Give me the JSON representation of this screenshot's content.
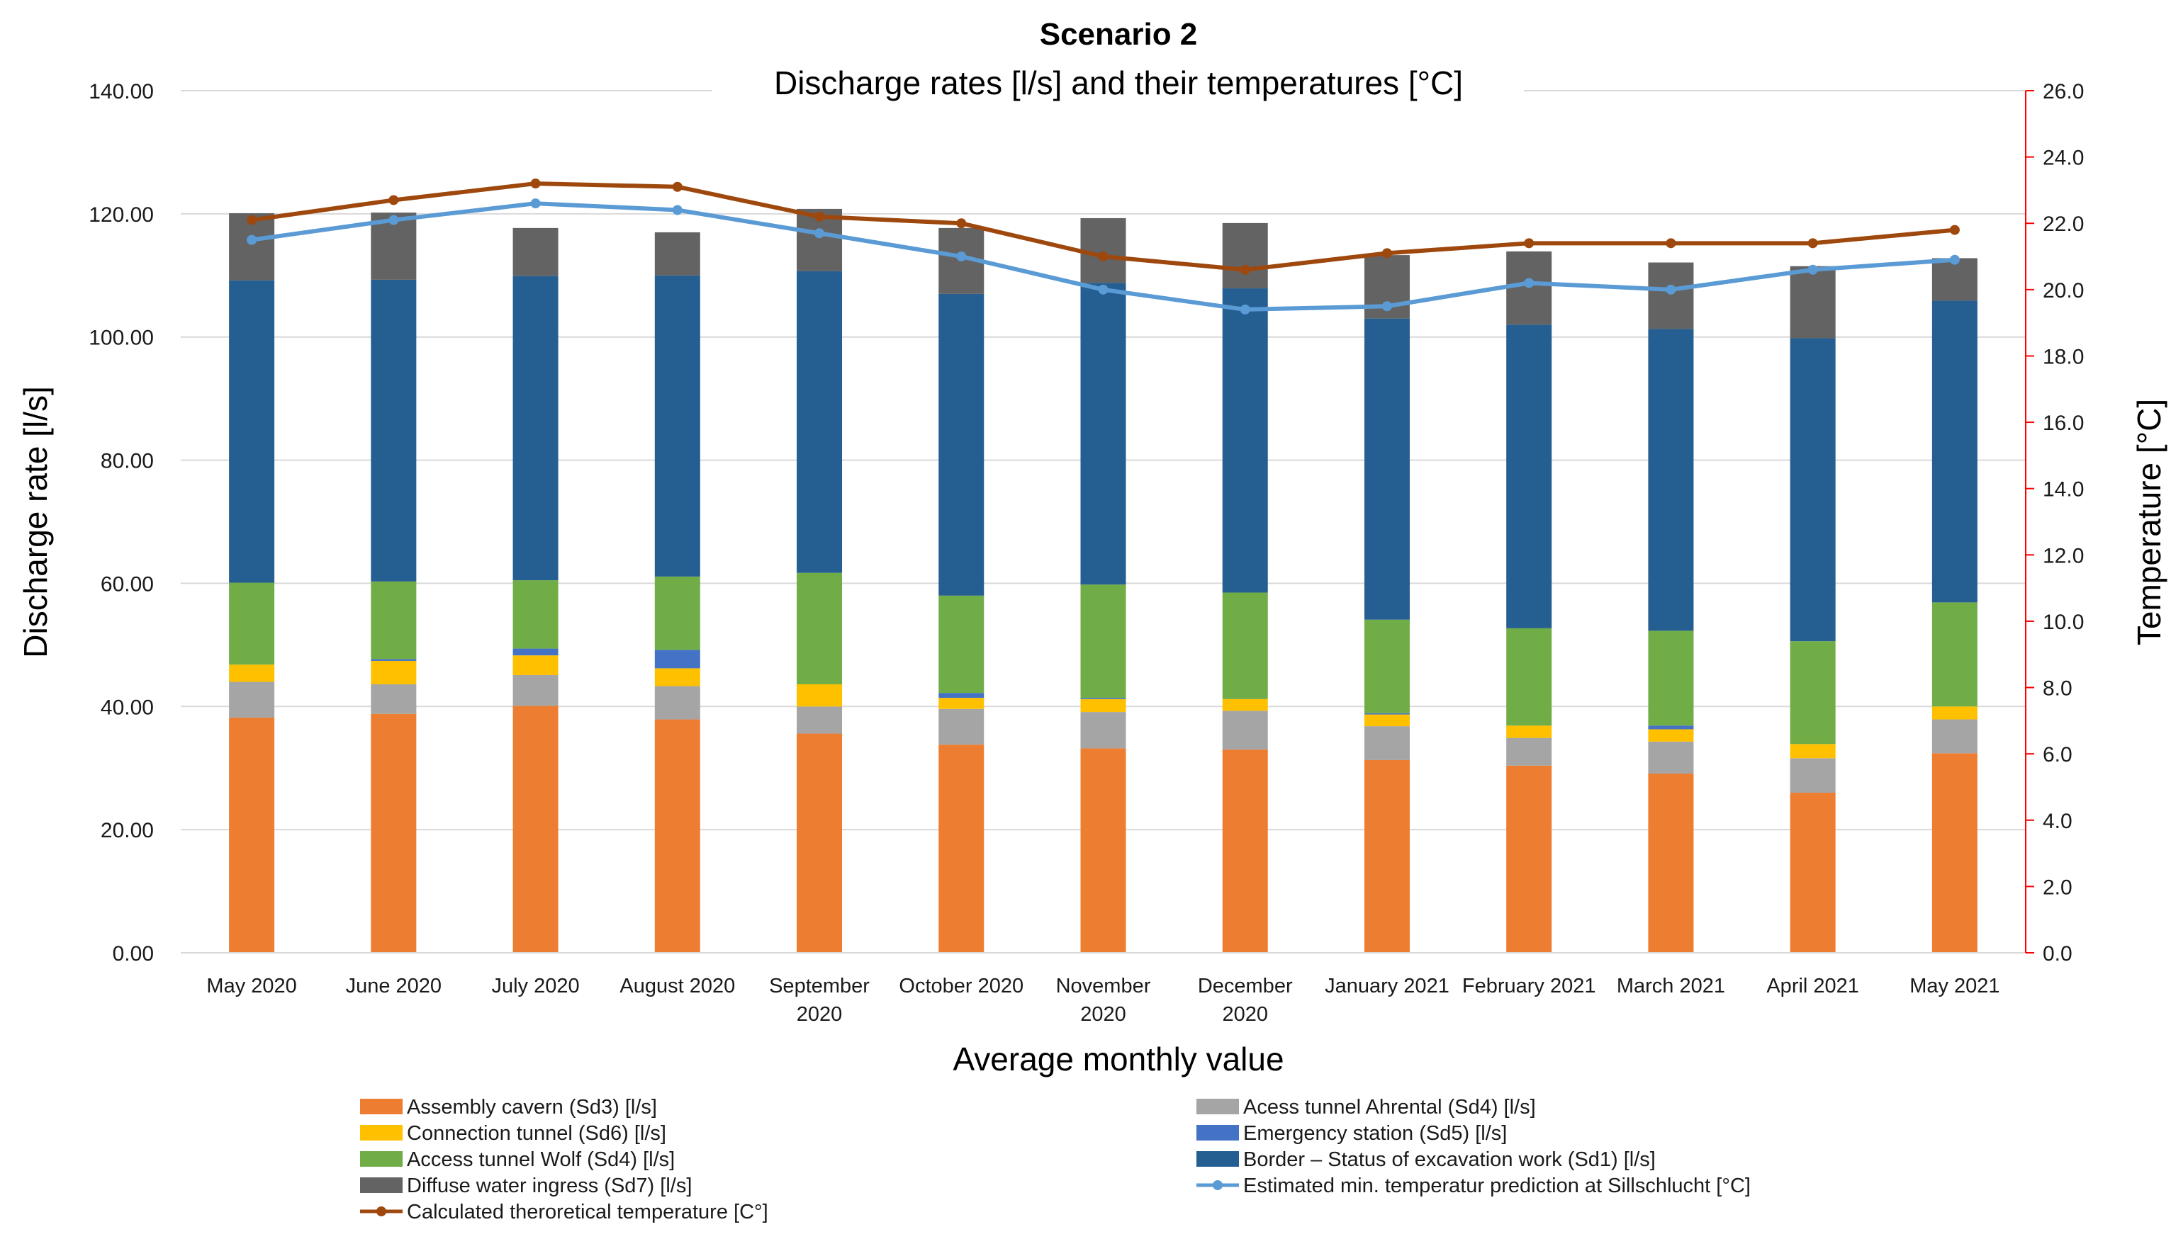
{
  "chart_data": {
    "type": "bar",
    "stacked": true,
    "title": "Scenario 2",
    "subtitle": "Discharge rates [l/s] and their temperatures [°C]",
    "xlabel": "Average  monthly value",
    "ylabel": "Discharge rate [l/s]",
    "y2label": "Temperature [°C]",
    "ylim": [
      0,
      140
    ],
    "y2lim": [
      0,
      26
    ],
    "yticks": [
      "0.00",
      "20.00",
      "40.00",
      "60.00",
      "80.00",
      "100.00",
      "120.00",
      "140.00"
    ],
    "y2ticks": [
      "0.0",
      "2.0",
      "4.0",
      "6.0",
      "8.0",
      "10.0",
      "12.0",
      "14.0",
      "16.0",
      "18.0",
      "20.0",
      "22.0",
      "24.0",
      "26.0"
    ],
    "categories": [
      "May 2020",
      "June 2020",
      "July 2020",
      "August 2020",
      "September 2020",
      "October 2020",
      "November 2020",
      "December 2020",
      "January 2021",
      "February 2021",
      "March 2021",
      "April 2021",
      "May 2021"
    ],
    "series": [
      {
        "name": "Assembly cavern (Sd3) [l/s]",
        "color": "#ED7D31",
        "values": [
          38.2,
          38.8,
          40.1,
          37.9,
          35.6,
          33.8,
          33.2,
          33.0,
          31.3,
          30.4,
          29.1,
          26.0,
          32.4
        ]
      },
      {
        "name": "Acess tunnel Ahrental (Sd4) [l/s]",
        "color": "#A5A5A5",
        "values": [
          5.8,
          4.8,
          5.0,
          5.4,
          4.4,
          5.8,
          5.9,
          6.3,
          5.5,
          4.5,
          5.2,
          5.6,
          5.5
        ]
      },
      {
        "name": "Connection tunnel (Sd6) [l/s]",
        "color": "#FFC000",
        "values": [
          2.8,
          3.8,
          3.2,
          2.9,
          3.6,
          1.8,
          2.1,
          1.9,
          1.9,
          2.0,
          2.0,
          2.3,
          2.1
        ]
      },
      {
        "name": "Emergency station (Sd5) [l/s]",
        "color": "#4472C4",
        "values": [
          0.0,
          0.3,
          1.1,
          3.0,
          0.0,
          0.8,
          0.2,
          0.0,
          0.2,
          0.0,
          0.6,
          0.0,
          0.0
        ]
      },
      {
        "name": "Access tunnel Wolf (Sd4) [l/s]",
        "color": "#70AD47",
        "values": [
          13.3,
          12.6,
          11.1,
          11.9,
          18.1,
          15.8,
          18.4,
          17.3,
          15.2,
          15.8,
          15.4,
          16.7,
          16.9
        ]
      },
      {
        "name": "Border – Status of excavation work (Sd1) [l/s]",
        "color": "#255E91",
        "values": [
          49.1,
          49.0,
          49.4,
          48.9,
          49.0,
          49.0,
          49.0,
          49.4,
          48.9,
          49.3,
          49.0,
          49.2,
          49.0
        ]
      },
      {
        "name": "Diffuse water ingress (Sd7) [l/s]",
        "color": "#636363",
        "values": [
          10.9,
          10.9,
          7.8,
          7.0,
          10.1,
          10.7,
          10.5,
          10.6,
          10.3,
          11.9,
          10.8,
          11.7,
          6.9
        ]
      }
    ],
    "lines": [
      {
        "name": "Estimated min. temperatur prediction at Sillschlucht [°C]",
        "color": "#5B9BD5",
        "axis": "y2",
        "values": [
          21.5,
          22.1,
          22.6,
          22.4,
          21.7,
          21.0,
          20.0,
          19.4,
          19.5,
          20.2,
          20.0,
          20.6,
          20.9
        ]
      },
      {
        "name": "Calculated theroretical temperature [C°]",
        "color": "#9E480E",
        "axis": "y2",
        "values": [
          22.1,
          22.7,
          23.2,
          23.1,
          22.2,
          22.0,
          21.0,
          20.6,
          21.1,
          21.4,
          21.4,
          21.4,
          21.8
        ]
      }
    ],
    "legend": [
      "Assembly cavern (Sd3) [l/s]",
      "Acess tunnel Ahrental (Sd4) [l/s]",
      "Connection tunnel (Sd6) [l/s]",
      "Emergency station (Sd5) [l/s]",
      "Access tunnel Wolf (Sd4) [l/s]",
      "Border – Status of excavation work (Sd1) [l/s]",
      "Diffuse water ingress (Sd7) [l/s]",
      "Estimated min. temperatur prediction at Sillschlucht [°C]",
      "Calculated theroretical temperature [C°]"
    ],
    "legend_position": "bottom",
    "grid": true
  }
}
